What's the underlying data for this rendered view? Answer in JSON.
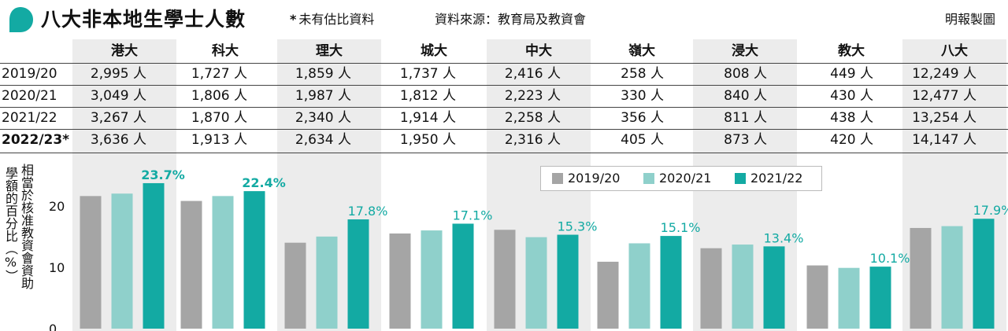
{
  "header": {
    "title": "八大非本地生學士人數",
    "note_star": "*",
    "note": "未有估比資料",
    "source": "資料來源：教育局及教資會",
    "credit": "明報製圖"
  },
  "table": {
    "columns": [
      "港大",
      "科大",
      "理大",
      "城大",
      "中大",
      "嶺大",
      "浸大",
      "教大",
      "八大"
    ],
    "rows": [
      {
        "year": "2019/20",
        "bold": false,
        "values": [
          "2,995 人",
          "1,727 人",
          "1,859 人",
          "1,737 人",
          "2,416 人",
          "258 人",
          "808 人",
          "449 人",
          "12,249 人"
        ]
      },
      {
        "year": "2020/21",
        "bold": false,
        "values": [
          "3,049 人",
          "1,806 人",
          "1,987 人",
          "1,812 人",
          "2,223 人",
          "330 人",
          "840 人",
          "430 人",
          "12,477 人"
        ]
      },
      {
        "year": "2021/22",
        "bold": false,
        "values": [
          "3,267 人",
          "1,870 人",
          "2,340 人",
          "1,914 人",
          "2,258 人",
          "356 人",
          "811 人",
          "438 人",
          "13,254 人"
        ]
      },
      {
        "year": "2022/23*",
        "bold": true,
        "values": [
          "3,636 人",
          "1,913 人",
          "2,634 人",
          "1,950 人",
          "2,316 人",
          "405 人",
          "873 人",
          "420 人",
          "14,147 人"
        ]
      }
    ]
  },
  "chart_data": {
    "type": "bar",
    "ylabel_line1": "相當於核准教資會資助",
    "ylabel_line2": "學額的百分比（%）",
    "categories": [
      "港大",
      "科大",
      "理大",
      "城大",
      "中大",
      "嶺大",
      "浸大",
      "教大",
      "八大"
    ],
    "series": [
      {
        "name": "2019/20",
        "color": "#a5a5a5",
        "values": [
          21.6,
          20.8,
          14.0,
          15.5,
          16.1,
          10.9,
          13.1,
          10.3,
          16.4
        ]
      },
      {
        "name": "2020/21",
        "color": "#8fd0cb",
        "values": [
          22.0,
          21.6,
          15.0,
          16.0,
          14.9,
          13.9,
          13.7,
          9.9,
          16.7
        ]
      },
      {
        "name": "2021/22",
        "color": "#13aaa3",
        "values": [
          23.7,
          22.4,
          17.8,
          17.1,
          15.3,
          15.1,
          13.4,
          10.1,
          17.9
        ]
      }
    ],
    "data_labels": [
      "23.7%",
      "22.4%",
      "17.8%",
      "17.1%",
      "15.3%",
      "15.1%",
      "13.4%",
      "10.1%",
      "17.9%"
    ],
    "bold_labels": [
      true,
      true,
      false,
      false,
      false,
      false,
      false,
      false,
      false
    ],
    "yticks": [
      "0",
      "10",
      "20"
    ],
    "ylim": [
      0,
      26
    ],
    "grid": false,
    "legend_position": "top-right"
  }
}
